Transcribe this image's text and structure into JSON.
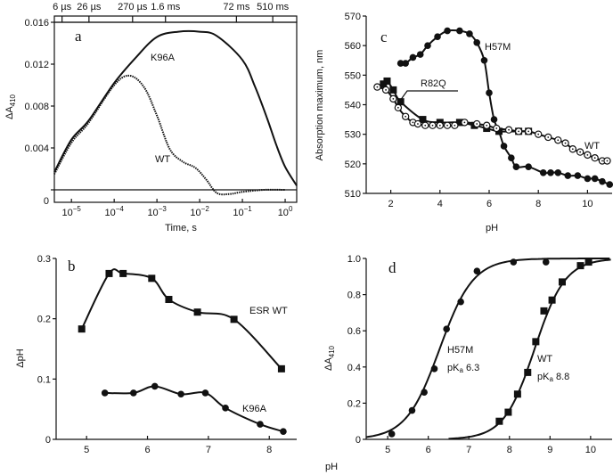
{
  "chart_data": [
    {
      "panel": "a",
      "type": "line",
      "xscale": "log",
      "xlim": [
        -5.4,
        0.27
      ],
      "ylim": [
        0,
        0.016
      ],
      "xlabel": "Time, s",
      "ylabel": "ΔA",
      "ylabel_sub": "410",
      "xticks": [
        {
          "v": -5,
          "base": "10",
          "exp": "−5"
        },
        {
          "v": -4,
          "base": "10",
          "exp": "−4"
        },
        {
          "v": -3,
          "base": "10",
          "exp": "−3"
        },
        {
          "v": -2,
          "base": "10",
          "exp": "−2"
        },
        {
          "v": -1,
          "base": "10",
          "exp": "−1"
        },
        {
          "v": 0,
          "base": "10",
          "exp": "0"
        }
      ],
      "yticks": [
        {
          "v": 0,
          "label": "0"
        },
        {
          "v": 0.004,
          "label": "0.004"
        },
        {
          "v": 0.008,
          "label": "0.008"
        },
        {
          "v": 0.012,
          "label": "0.012"
        },
        {
          "v": 0.016,
          "label": "0.016"
        }
      ],
      "top_ticks": [
        {
          "v": -5.22,
          "label": "6 µs"
        },
        {
          "v": -4.59,
          "label": "26 µs"
        },
        {
          "v": -3.57,
          "label": "270 µs"
        },
        {
          "v": -2.8,
          "label": "1.6 ms"
        },
        {
          "v": -1.14,
          "label": "72 ms"
        },
        {
          "v": -0.29,
          "label": "510 ms"
        }
      ],
      "grid": false,
      "series": [
        {
          "name": "K96A",
          "style": "solid",
          "x_log10": [
            -5.4,
            -5.0,
            -4.6,
            -4.0,
            -3.5,
            -3.0,
            -2.5,
            -2.0,
            -1.6,
            -1.0,
            -0.7,
            -0.42,
            -0.2,
            0.0,
            0.27
          ],
          "y": [
            0.0017,
            0.0048,
            0.0066,
            0.0102,
            0.0126,
            0.0146,
            0.0151,
            0.0151,
            0.0147,
            0.0124,
            0.0098,
            0.0068,
            0.0042,
            0.0022,
            0.0004
          ]
        },
        {
          "name": "WT",
          "style": "dotted",
          "x_log10": [
            -5.4,
            -5.0,
            -4.6,
            -4.0,
            -3.64,
            -3.3,
            -3.0,
            -2.7,
            -2.4,
            -2.1,
            -1.85,
            -1.6,
            -1.3,
            -1.0,
            -0.5,
            0.0
          ],
          "y": [
            0.0015,
            0.0045,
            0.0064,
            0.01,
            0.0109,
            0.0098,
            0.0071,
            0.0039,
            0.0027,
            0.0021,
            0.001,
            -0.0003,
            -0.0004,
            -0.0002,
            0.0,
            0.0
          ]
        }
      ]
    },
    {
      "panel": "b",
      "type": "scatter",
      "xlim": [
        4.5,
        8.45
      ],
      "ylim": [
        0,
        0.3
      ],
      "xlabel": "",
      "ylabel": "ΔpH",
      "xticks": [
        {
          "v": 5,
          "label": "5"
        },
        {
          "v": 6,
          "label": "6"
        },
        {
          "v": 7,
          "label": "7"
        },
        {
          "v": 8,
          "label": "8"
        }
      ],
      "yticks": [
        {
          "v": 0,
          "label": "0"
        },
        {
          "v": 0.1,
          "label": "0.1"
        },
        {
          "v": 0.2,
          "label": "0.2"
        },
        {
          "v": 0.3,
          "label": "0.3"
        }
      ],
      "grid": false,
      "series": [
        {
          "name": "ESR WT",
          "marker": "square",
          "x": [
            4.92,
            5.37,
            5.6,
            6.07,
            6.35,
            6.82,
            7.42,
            8.2
          ],
          "y": [
            0.183,
            0.275,
            0.275,
            0.267,
            0.232,
            0.211,
            0.199,
            0.117
          ]
        },
        {
          "name": "K96A",
          "marker": "circle",
          "x": [
            5.3,
            5.77,
            6.12,
            6.55,
            6.95,
            7.28,
            7.85,
            8.23
          ],
          "y": [
            0.077,
            0.077,
            0.088,
            0.075,
            0.077,
            0.052,
            0.025,
            0.013
          ]
        }
      ]
    },
    {
      "panel": "c",
      "type": "scatter",
      "xlim": [
        1,
        11
      ],
      "ylim": [
        510,
        570
      ],
      "xlabel": "pH",
      "ylabel": "Absorption maximum, nm",
      "xticks": [
        {
          "v": 2,
          "label": "2"
        },
        {
          "v": 4,
          "label": "4"
        },
        {
          "v": 6,
          "label": "6"
        },
        {
          "v": 8,
          "label": "8"
        },
        {
          "v": 10,
          "label": "10"
        }
      ],
      "yticks": [
        {
          "v": 510,
          "label": "510"
        },
        {
          "v": 520,
          "label": "520"
        },
        {
          "v": 530,
          "label": "530"
        },
        {
          "v": 540,
          "label": "540"
        },
        {
          "v": 550,
          "label": "550"
        },
        {
          "v": 560,
          "label": "560"
        },
        {
          "v": 570,
          "label": "570"
        }
      ],
      "grid": false,
      "series": [
        {
          "name": "H57M",
          "marker": "circle",
          "x": [
            2.4,
            2.6,
            2.9,
            3.2,
            3.5,
            3.9,
            4.3,
            4.8,
            5.2,
            5.5,
            5.8,
            6.0,
            6.2,
            6.4,
            6.6,
            6.9,
            7.1,
            7.6,
            8.2,
            8.5,
            8.8,
            9.2,
            9.6,
            10.0,
            10.3,
            10.6,
            10.9
          ],
          "y": [
            554,
            554,
            556,
            557,
            560,
            563,
            565,
            565,
            564,
            561,
            555,
            544,
            535,
            531,
            526,
            522,
            519,
            519,
            517,
            517,
            517,
            516,
            516,
            515,
            515,
            514,
            513
          ]
        },
        {
          "name": "R82Q",
          "marker": "square",
          "x": [
            1.7,
            1.85,
            2.1,
            2.4,
            3.3,
            4.0,
            4.8,
            5.4,
            5.9,
            6.4,
            7.2,
            7.6
          ],
          "y": [
            547,
            548,
            545,
            541,
            535,
            534,
            534,
            533,
            532,
            531,
            531,
            531
          ]
        },
        {
          "name": "WT",
          "marker": "open-circle",
          "x": [
            1.45,
            1.8,
            2.1,
            2.3,
            2.6,
            2.9,
            3.1,
            3.4,
            3.7,
            4.0,
            4.3,
            4.6,
            5.0,
            5.5,
            5.9,
            6.3,
            6.8,
            7.2,
            7.6,
            8.0,
            8.4,
            8.8,
            9.1,
            9.4,
            9.7,
            10.0,
            10.3,
            10.6,
            10.8
          ],
          "y": [
            546,
            545,
            542,
            539,
            536,
            534,
            533.5,
            533,
            533,
            533,
            533,
            533,
            534,
            533.5,
            533,
            532,
            531.5,
            531,
            531,
            530,
            529,
            528,
            527,
            525,
            524,
            523,
            522,
            521,
            521
          ]
        }
      ]
    },
    {
      "panel": "d",
      "type": "scatter",
      "xlim": [
        4.47,
        10.53
      ],
      "ylim": [
        0,
        1.0
      ],
      "xlabel": "pH",
      "ylabel": "ΔA",
      "ylabel_sub": "410",
      "xticks": [
        {
          "v": 5,
          "label": "5"
        },
        {
          "v": 6,
          "label": "6"
        },
        {
          "v": 7,
          "label": "7"
        },
        {
          "v": 8,
          "label": "8"
        },
        {
          "v": 9,
          "label": "9"
        },
        {
          "v": 10,
          "label": "10"
        }
      ],
      "yticks": [
        {
          "v": 0,
          "label": "0"
        },
        {
          "v": 0.2,
          "label": "0.2"
        },
        {
          "v": 0.4,
          "label": "0.4"
        },
        {
          "v": 0.6,
          "label": "0.6"
        },
        {
          "v": 0.8,
          "label": "0.8"
        },
        {
          "v": 1.0,
          "label": "1.0"
        }
      ],
      "grid": false,
      "series": [
        {
          "name": "H57M",
          "pka_label": {
            "main": "pK",
            "sub": "a",
            "rest": " 6.3"
          },
          "marker": "circle",
          "x": [
            5.1,
            5.6,
            5.9,
            6.15,
            6.45,
            6.8,
            7.2,
            8.1,
            8.9
          ],
          "y": [
            0.03,
            0.16,
            0.26,
            0.39,
            0.61,
            0.76,
            0.93,
            0.98,
            0.98
          ]
        },
        {
          "name": "WT",
          "pka_label": {
            "main": "pK",
            "sub": "a",
            "rest": " 8.8"
          },
          "marker": "square",
          "x": [
            7.75,
            7.97,
            8.2,
            8.45,
            8.65,
            8.85,
            9.05,
            9.3,
            9.75,
            9.95
          ],
          "y": [
            0.1,
            0.15,
            0.25,
            0.37,
            0.54,
            0.71,
            0.77,
            0.87,
            0.96,
            0.98
          ]
        }
      ]
    }
  ]
}
